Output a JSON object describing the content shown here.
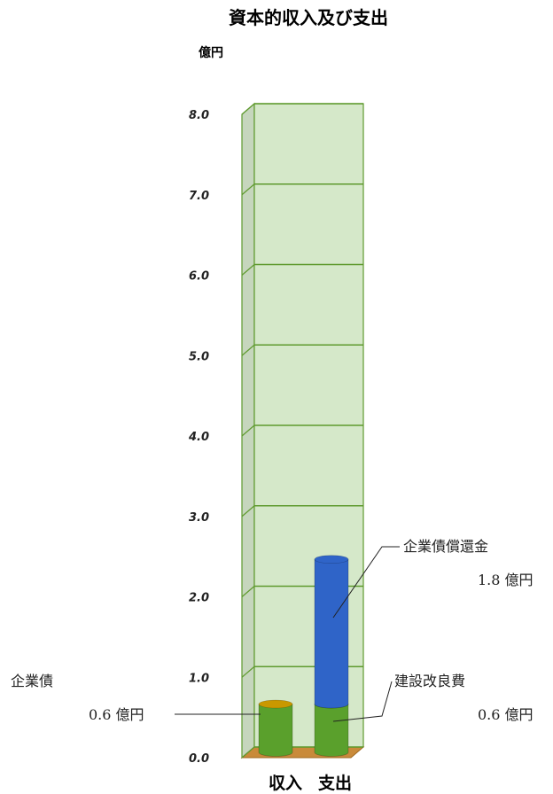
{
  "chart_data": {
    "type": "bar",
    "stacked": true,
    "three_d": true,
    "title": "資本的収入及び支出",
    "ylabel": "億円",
    "ylim": [
      0,
      8
    ],
    "yticks": [
      "0.0",
      "1.0",
      "2.0",
      "3.0",
      "4.0",
      "5.0",
      "6.0",
      "7.0",
      "8.0"
    ],
    "categories": [
      "収入",
      "支出"
    ],
    "grid": true,
    "colors": {
      "wall": "#d5e8c9",
      "grid": "#5f9a2e",
      "floor": "#c98a3a",
      "green_bar": "#5aa02c",
      "blue_bar": "#2f64c8",
      "cap_gold": "#c99800"
    },
    "segments": [
      {
        "category": "収入",
        "name": "企業債",
        "value": 0.6,
        "value_label": "0.6 億円",
        "color": "#5aa02c",
        "cap": "#c99800"
      },
      {
        "category": "支出",
        "name": "建設改良費",
        "value": 0.6,
        "value_label": "0.6 億円",
        "color": "#5aa02c"
      },
      {
        "category": "支出",
        "name": "企業債償還金",
        "value": 1.8,
        "value_label": "1.8 億円",
        "color": "#2f64c8"
      }
    ]
  }
}
